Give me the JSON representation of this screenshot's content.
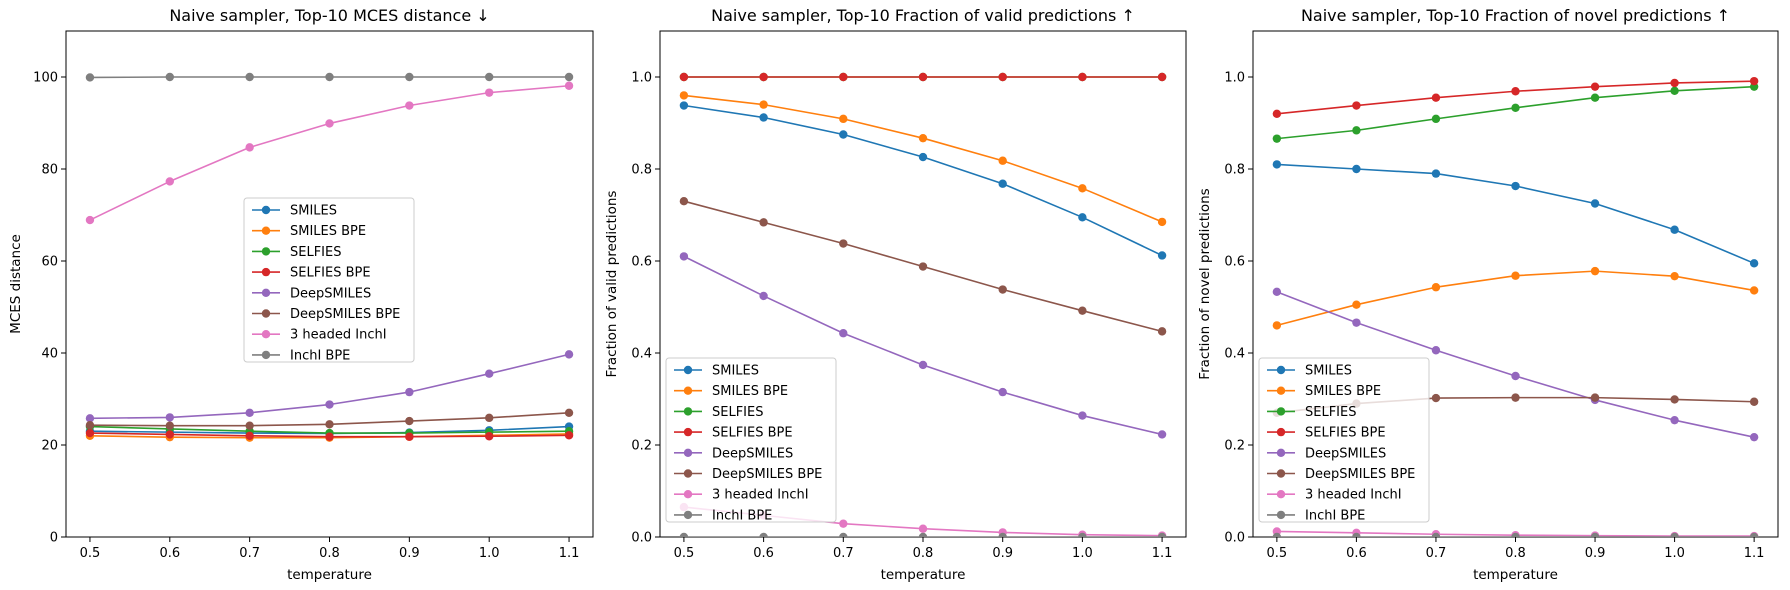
{
  "chart_data": [
    {
      "type": "line",
      "title": "Naive sampler, Top-10 MCES distance ↓",
      "xlabel": "temperature",
      "ylabel": "MCES distance",
      "x": [
        0.5,
        0.6,
        0.7,
        0.8,
        0.9,
        1.0,
        1.1
      ],
      "xticks": [
        "0.5",
        "0.6",
        "0.7",
        "0.8",
        "0.9",
        "1.0",
        "1.1"
      ],
      "yticks": [
        "0",
        "20",
        "40",
        "60",
        "80",
        "100"
      ],
      "ylim": [
        0,
        110
      ],
      "legend_position": "center",
      "series": [
        {
          "name": "SMILES",
          "color": "#1f77b4",
          "values": [
            23.0,
            22.8,
            22.6,
            22.5,
            22.7,
            23.2,
            24.0
          ]
        },
        {
          "name": "SMILES BPE",
          "color": "#ff7f0e",
          "values": [
            22.0,
            21.7,
            21.6,
            21.6,
            21.8,
            22.1,
            22.4
          ]
        },
        {
          "name": "SELFIES",
          "color": "#2ca02c",
          "values": [
            24.0,
            23.5,
            23.0,
            22.6,
            22.6,
            22.8,
            23.0
          ]
        },
        {
          "name": "SELFIES BPE",
          "color": "#d62728",
          "values": [
            22.6,
            22.3,
            22.0,
            21.8,
            21.8,
            21.9,
            22.1
          ]
        },
        {
          "name": "DeepSMILES",
          "color": "#9467bd",
          "values": [
            25.8,
            26.0,
            27.0,
            28.8,
            31.5,
            35.5,
            39.7
          ]
        },
        {
          "name": "DeepSMILES BPE",
          "color": "#8c564b",
          "values": [
            24.3,
            24.2,
            24.2,
            24.5,
            25.2,
            25.9,
            27.0
          ]
        },
        {
          "name": "3 headed InchI",
          "color": "#e377c2",
          "values": [
            68.9,
            77.3,
            84.7,
            89.9,
            93.8,
            96.6,
            98.1
          ]
        },
        {
          "name": "InchI BPE",
          "color": "#7f7f7f",
          "values": [
            99.9,
            100.0,
            100.0,
            100.0,
            100.0,
            100.0,
            100.0
          ]
        }
      ]
    },
    {
      "type": "line",
      "title": "Naive sampler, Top-10 Fraction of valid predictions ↑",
      "xlabel": "temperature",
      "ylabel": "Fraction of valid predictions",
      "x": [
        0.5,
        0.6,
        0.7,
        0.8,
        0.9,
        1.0,
        1.1
      ],
      "xticks": [
        "0.5",
        "0.6",
        "0.7",
        "0.8",
        "0.9",
        "1.0",
        "1.1"
      ],
      "yticks": [
        "0.0",
        "0.2",
        "0.4",
        "0.6",
        "0.8",
        "1.0"
      ],
      "ylim": [
        0,
        1.1
      ],
      "legend_position": "lower left",
      "series": [
        {
          "name": "SMILES",
          "color": "#1f77b4",
          "values": [
            0.938,
            0.912,
            0.875,
            0.826,
            0.768,
            0.695,
            0.612
          ]
        },
        {
          "name": "SMILES BPE",
          "color": "#ff7f0e",
          "values": [
            0.96,
            0.94,
            0.909,
            0.867,
            0.818,
            0.758,
            0.685
          ]
        },
        {
          "name": "SELFIES",
          "color": "#2ca02c",
          "values": [
            1.0,
            1.0,
            1.0,
            1.0,
            1.0,
            1.0,
            1.0
          ]
        },
        {
          "name": "SELFIES BPE",
          "color": "#d62728",
          "values": [
            1.0,
            1.0,
            1.0,
            1.0,
            1.0,
            1.0,
            1.0
          ]
        },
        {
          "name": "DeepSMILES",
          "color": "#9467bd",
          "values": [
            0.61,
            0.524,
            0.443,
            0.374,
            0.315,
            0.264,
            0.223
          ]
        },
        {
          "name": "DeepSMILES BPE",
          "color": "#8c564b",
          "values": [
            0.73,
            0.684,
            0.638,
            0.588,
            0.538,
            0.492,
            0.447
          ]
        },
        {
          "name": "3 headed InchI",
          "color": "#e377c2",
          "values": [
            0.065,
            0.047,
            0.029,
            0.018,
            0.01,
            0.005,
            0.003
          ]
        },
        {
          "name": "InchI BPE",
          "color": "#7f7f7f",
          "values": [
            0.0,
            0.0,
            0.0,
            0.0,
            0.0,
            0.0,
            0.0
          ]
        }
      ]
    },
    {
      "type": "line",
      "title": "Naive sampler, Top-10 Fraction of novel predictions ↑",
      "xlabel": "temperature",
      "ylabel": "Fraction of novel predictions",
      "x": [
        0.5,
        0.6,
        0.7,
        0.8,
        0.9,
        1.0,
        1.1
      ],
      "xticks": [
        "0.5",
        "0.6",
        "0.7",
        "0.8",
        "0.9",
        "1.0",
        "1.1"
      ],
      "yticks": [
        "0.0",
        "0.2",
        "0.4",
        "0.6",
        "0.8",
        "1.0"
      ],
      "ylim": [
        0,
        1.1
      ],
      "legend_position": "lower left",
      "series": [
        {
          "name": "SMILES",
          "color": "#1f77b4",
          "values": [
            0.81,
            0.8,
            0.79,
            0.763,
            0.725,
            0.668,
            0.595
          ]
        },
        {
          "name": "SMILES BPE",
          "color": "#ff7f0e",
          "values": [
            0.46,
            0.505,
            0.543,
            0.568,
            0.578,
            0.567,
            0.536
          ]
        },
        {
          "name": "SELFIES",
          "color": "#2ca02c",
          "values": [
            0.866,
            0.884,
            0.909,
            0.933,
            0.955,
            0.97,
            0.979
          ]
        },
        {
          "name": "SELFIES BPE",
          "color": "#d62728",
          "values": [
            0.92,
            0.938,
            0.955,
            0.969,
            0.979,
            0.987,
            0.991
          ]
        },
        {
          "name": "DeepSMILES",
          "color": "#9467bd",
          "values": [
            0.533,
            0.466,
            0.406,
            0.35,
            0.298,
            0.254,
            0.217
          ]
        },
        {
          "name": "DeepSMILES BPE",
          "color": "#8c564b",
          "values": [
            0.27,
            0.29,
            0.302,
            0.303,
            0.303,
            0.299,
            0.294
          ]
        },
        {
          "name": "3 headed InchI",
          "color": "#e377c2",
          "values": [
            0.012,
            0.009,
            0.006,
            0.004,
            0.003,
            0.002,
            0.002
          ]
        },
        {
          "name": "InchI BPE",
          "color": "#7f7f7f",
          "values": [
            0.0,
            0.0,
            0.0,
            0.0,
            0.0,
            0.0,
            0.0
          ]
        }
      ]
    }
  ]
}
